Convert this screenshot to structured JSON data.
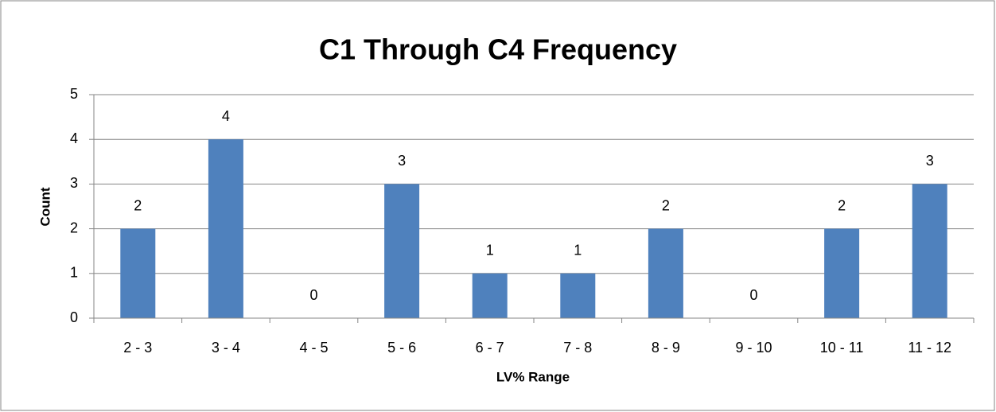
{
  "chart_data": {
    "type": "bar",
    "title": "C1 Through C4 Frequency",
    "x_label": "LV% Range",
    "y_label": "Count",
    "categories": [
      "2 - 3",
      "3 - 4",
      "4 - 5",
      "5 - 6",
      "6 - 7",
      "7 - 8",
      "8 - 9",
      "9 - 10",
      "10 - 11",
      "11 - 12"
    ],
    "values": [
      2,
      4,
      0,
      3,
      1,
      1,
      2,
      0,
      2,
      3
    ],
    "color": "#4f81bd",
    "ylim": [
      0,
      5
    ],
    "yticks": [
      0,
      1,
      2,
      3,
      4,
      5
    ],
    "grid": true
  }
}
